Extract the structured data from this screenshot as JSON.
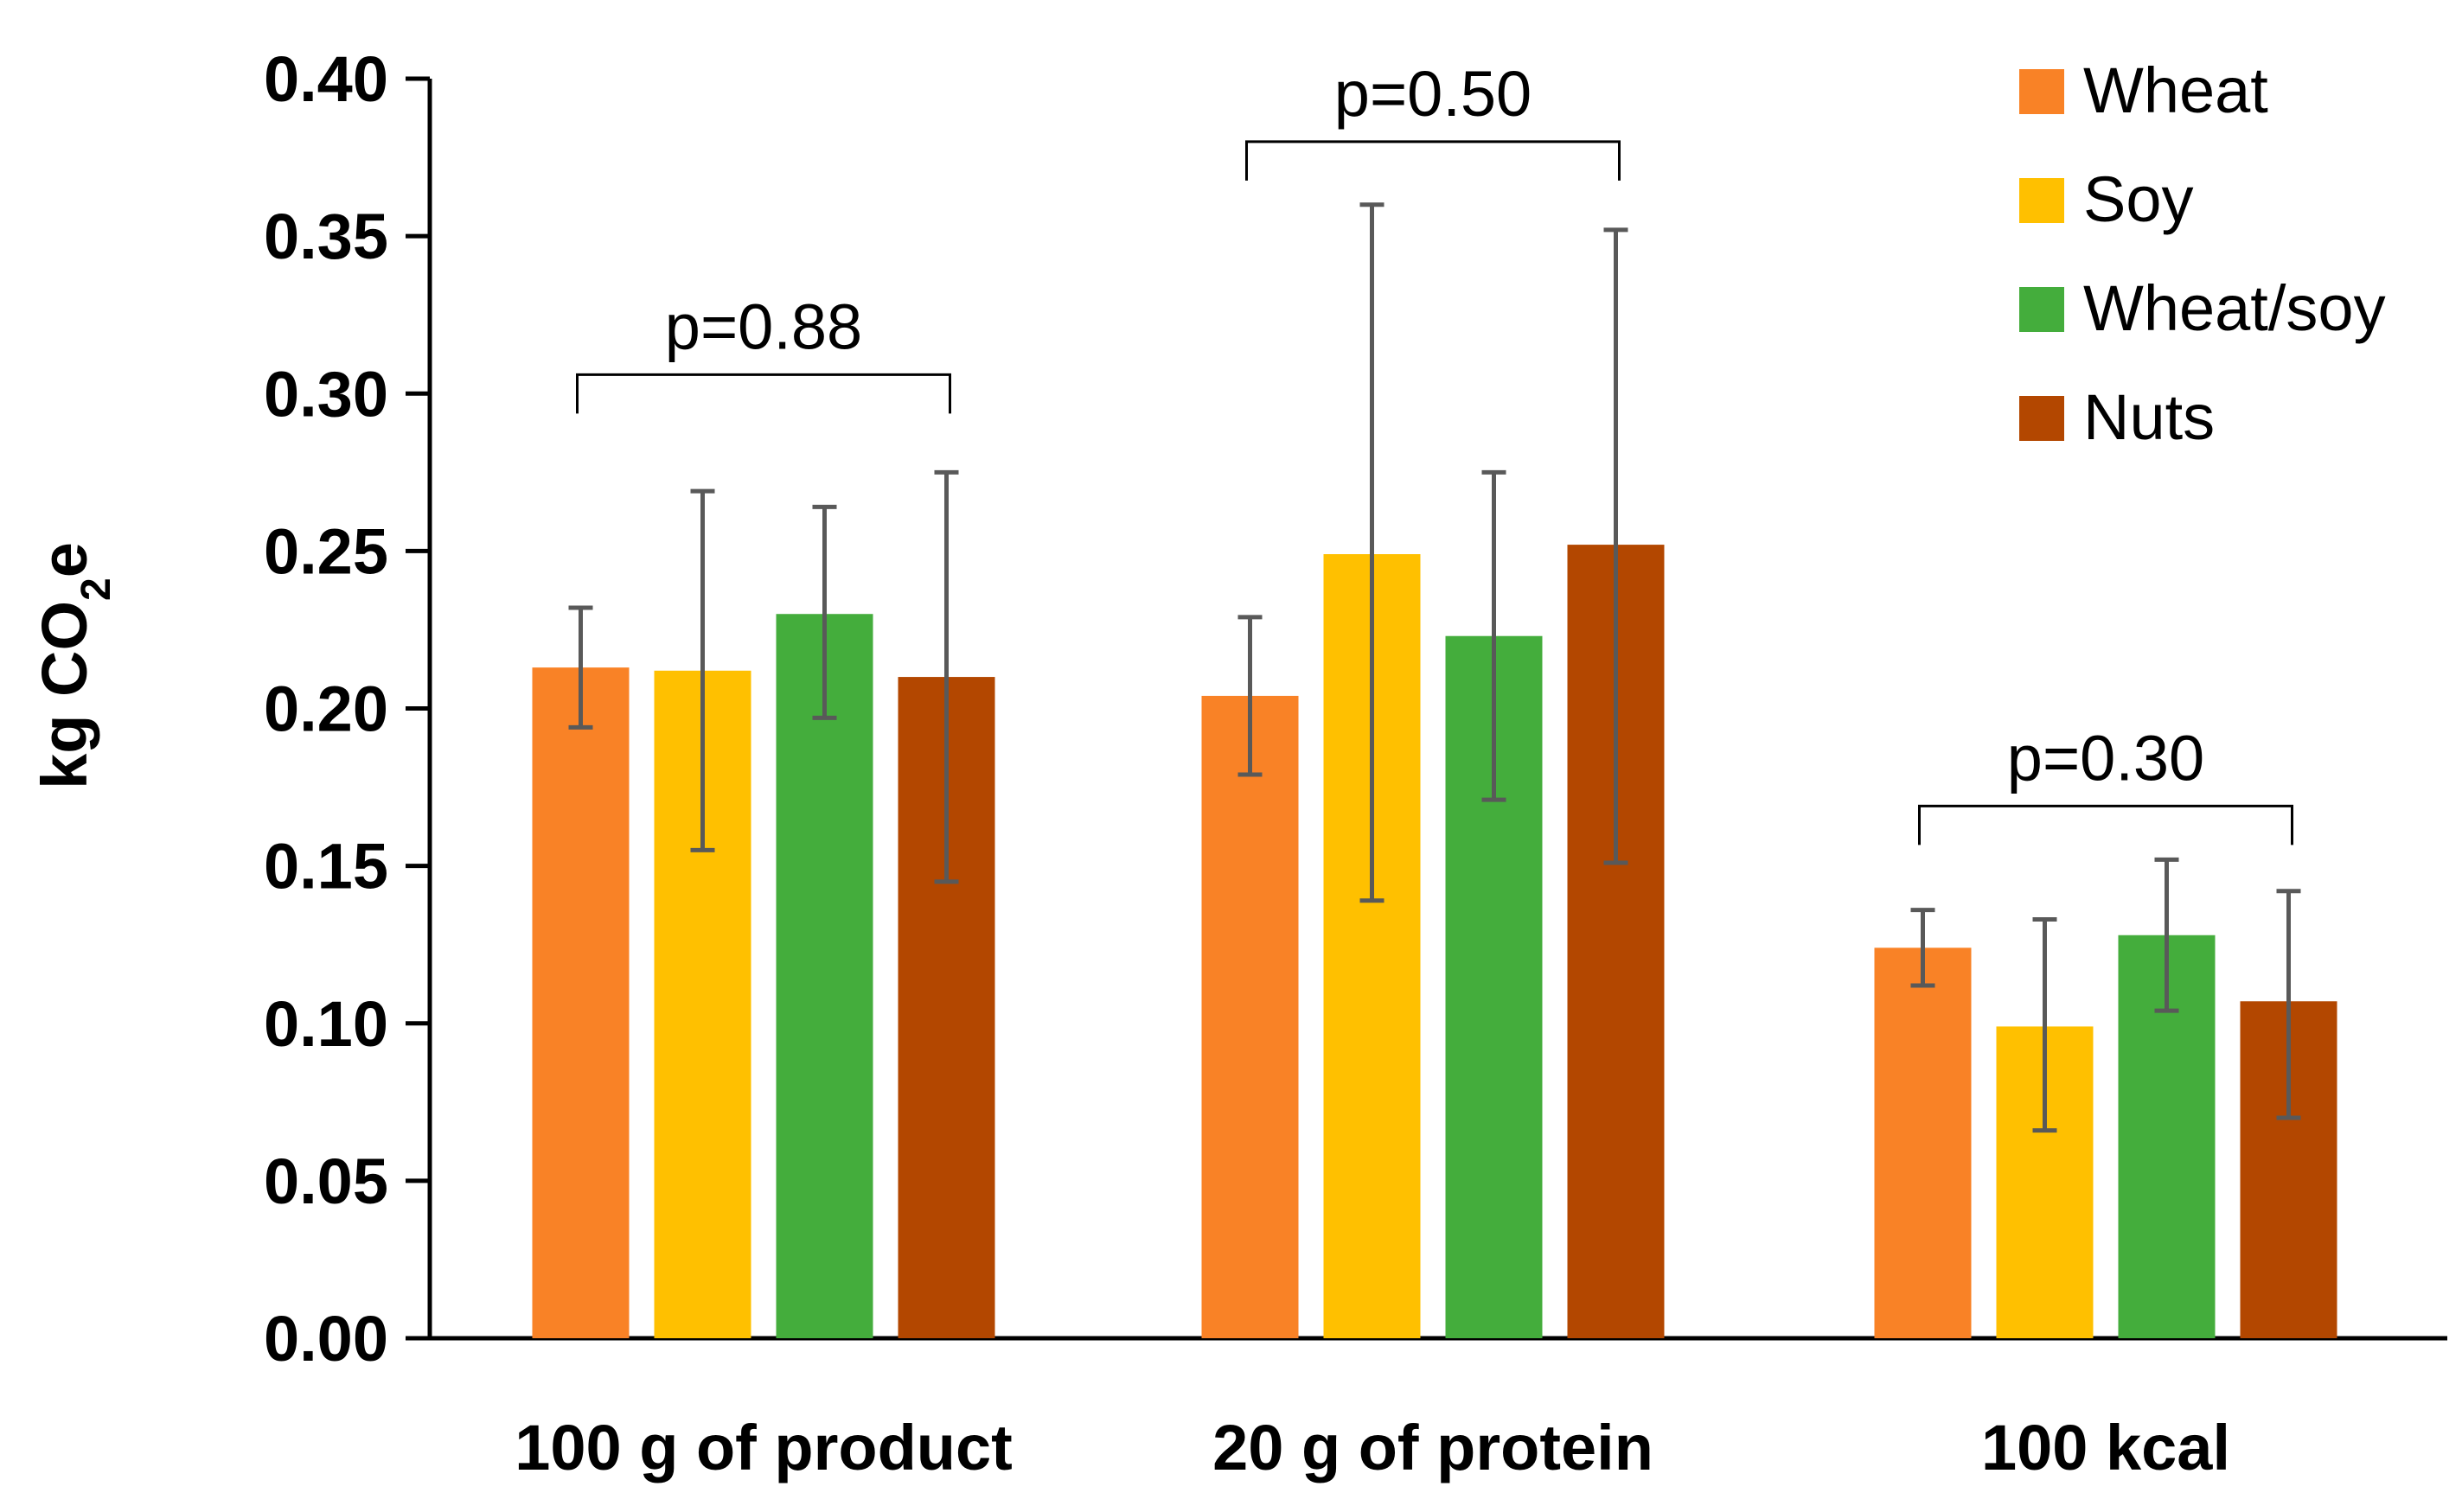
{
  "chart_data": {
    "type": "bar",
    "title": "",
    "xlabel": "",
    "ylabel": {
      "prefix": "kg CO",
      "subscript": "2",
      "suffix": "e"
    },
    "ylim": [
      0,
      0.4
    ],
    "yticks": [
      "0.00",
      "0.05",
      "0.10",
      "0.15",
      "0.20",
      "0.25",
      "0.30",
      "0.35",
      "0.40"
    ],
    "grid": false,
    "legend_position": "top-right",
    "categories": [
      "100 g of product",
      "20 g of protein",
      "100 kcal"
    ],
    "series": [
      {
        "name": "Wheat",
        "color": "#F98226",
        "values": [
          0.213,
          0.204,
          0.124
        ],
        "error_low": [
          0.194,
          0.179,
          0.112
        ],
        "error_high": [
          0.232,
          0.229,
          0.136
        ]
      },
      {
        "name": "Soy",
        "color": "#FFC000",
        "values": [
          0.212,
          0.249,
          0.099
        ],
        "error_low": [
          0.155,
          0.139,
          0.066
        ],
        "error_high": [
          0.269,
          0.36,
          0.133
        ]
      },
      {
        "name": "Wheat/soy",
        "color": "#44AD3C",
        "values": [
          0.23,
          0.223,
          0.128
        ],
        "error_low": [
          0.197,
          0.171,
          0.104
        ],
        "error_high": [
          0.264,
          0.275,
          0.152
        ]
      },
      {
        "name": "Nuts",
        "color": "#B34700",
        "values": [
          0.21,
          0.252,
          0.107
        ],
        "error_low": [
          0.145,
          0.151,
          0.07
        ],
        "error_high": [
          0.275,
          0.352,
          0.142
        ]
      }
    ],
    "annotations": [
      {
        "category": "100 g of product",
        "text": "p=0.88",
        "bracket_level": 0.306
      },
      {
        "category": "20 g of protein",
        "text": "p=0.50",
        "bracket_level": 0.38
      },
      {
        "category": "100 kcal",
        "text": "p=0.30",
        "bracket_level": 0.169
      }
    ],
    "error_bar_color": "#595959",
    "axis_color": "#000000"
  }
}
